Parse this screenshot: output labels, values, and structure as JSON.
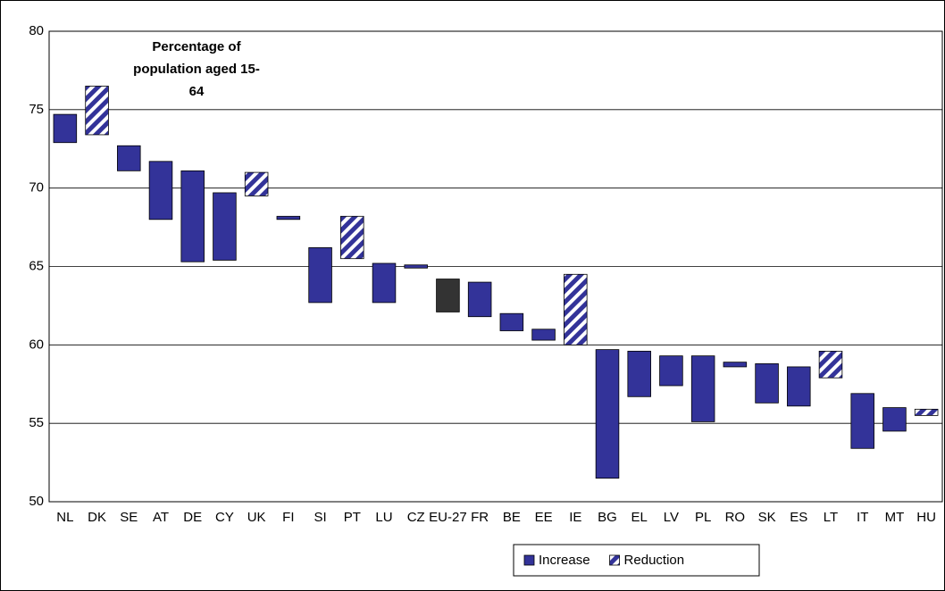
{
  "chart_data": {
    "type": "floating_bar",
    "title": "Percentage of population aged 15-64",
    "categories": [
      "NL",
      "DK",
      "SE",
      "AT",
      "DE",
      "CY",
      "UK",
      "FI",
      "SI",
      "PT",
      "LU",
      "CZ",
      "EU-27",
      "FR",
      "BE",
      "EE",
      "IE",
      "BG",
      "EL",
      "LV",
      "PL",
      "RO",
      "SK",
      "ES",
      "LT",
      "IT",
      "MT",
      "HU"
    ],
    "series": [
      {
        "name": "Increase",
        "color": "#333399",
        "pattern": "solid",
        "low": [
          72.9,
          null,
          71.1,
          68.0,
          65.3,
          65.4,
          null,
          68.0,
          62.7,
          null,
          62.7,
          64.9,
          62.1,
          61.8,
          60.9,
          60.3,
          null,
          51.5,
          56.7,
          57.4,
          55.1,
          58.6,
          56.3,
          56.1,
          null,
          53.4,
          54.5,
          null
        ],
        "high": [
          74.7,
          null,
          72.7,
          71.7,
          71.1,
          69.7,
          null,
          68.2,
          66.2,
          null,
          65.2,
          65.1,
          64.2,
          64.0,
          62.0,
          61.0,
          null,
          59.7,
          59.6,
          59.3,
          59.3,
          58.9,
          58.8,
          58.6,
          null,
          56.9,
          56.0,
          null
        ]
      },
      {
        "name": "Reduction",
        "color": "#333399",
        "pattern": "hatch",
        "low": [
          null,
          73.4,
          null,
          null,
          null,
          null,
          69.5,
          null,
          null,
          65.5,
          null,
          null,
          null,
          null,
          null,
          null,
          60.0,
          null,
          null,
          null,
          null,
          null,
          null,
          null,
          57.9,
          null,
          null,
          55.5
        ],
        "high": [
          null,
          76.5,
          null,
          null,
          null,
          null,
          71.0,
          null,
          null,
          68.2,
          null,
          null,
          null,
          null,
          null,
          null,
          64.5,
          null,
          null,
          null,
          null,
          null,
          null,
          null,
          59.6,
          null,
          null,
          55.9
        ]
      }
    ],
    "highlight_category": "EU-27",
    "highlight_color": "#333333",
    "ylim": [
      50,
      80
    ],
    "yticks": [
      50,
      55,
      60,
      65,
      70,
      75,
      80
    ],
    "grid": true,
    "legend": "bottom-right"
  }
}
